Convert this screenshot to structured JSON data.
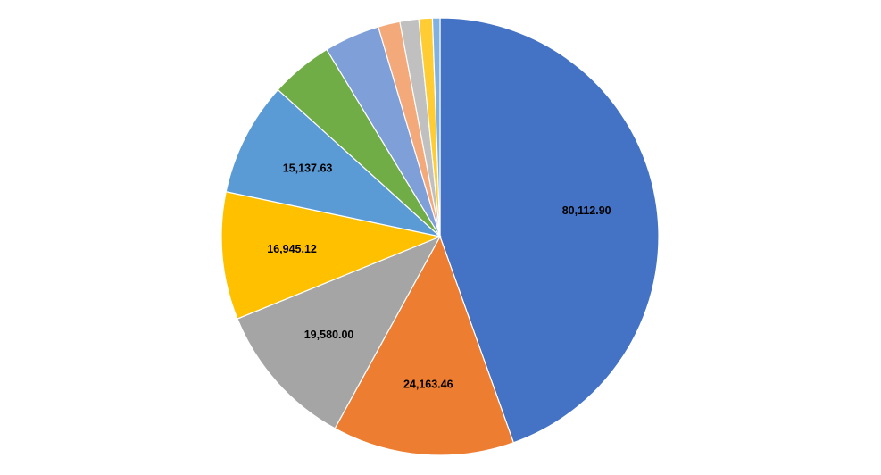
{
  "chart_data": {
    "type": "pie",
    "title": "",
    "legend": "none",
    "start_angle_deg": 0,
    "direction": "clockwise",
    "slices": [
      {
        "value": 80112.9,
        "label": "80,112.90",
        "color": "#4472C4"
      },
      {
        "value": 24163.46,
        "label": "24,163.46",
        "color": "#ED7D31"
      },
      {
        "value": 19580.0,
        "label": "19,580.00",
        "color": "#A5A5A5"
      },
      {
        "value": 16945.12,
        "label": "16,945.12",
        "color": "#FFC000"
      },
      {
        "value": 15137.63,
        "label": "15,137.63",
        "color": "#5B9BD5"
      },
      {
        "value": 8300,
        "label": "",
        "color": "#70AD47"
      },
      {
        "value": 7400,
        "label": "",
        "color": "#7F9FD9"
      },
      {
        "value": 2900,
        "label": "",
        "color": "#F4A97A"
      },
      {
        "value": 2500,
        "label": "",
        "color": "#C0C0C0"
      },
      {
        "value": 1800,
        "label": "",
        "color": "#FFCD33"
      },
      {
        "value": 1000,
        "label": "",
        "color": "#7FB2E1"
      }
    ]
  }
}
